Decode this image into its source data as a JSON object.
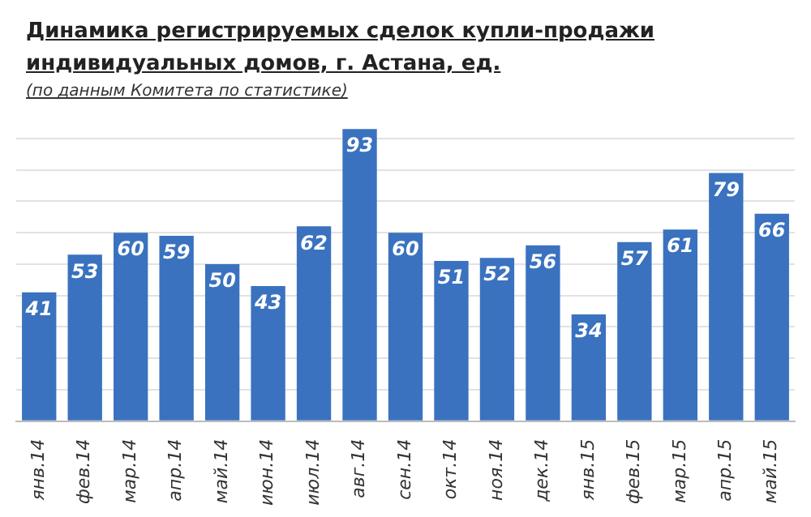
{
  "chart_data": {
    "type": "bar",
    "title": "Динамика регистрируемых сделок купли-продажи индивидуальных домов, г. Астана, ед.",
    "subtitle": "(по данным Комитета по статистике)",
    "categories": [
      "янв.14",
      "фев.14",
      "мар.14",
      "апр.14",
      "май.14",
      "июн.14",
      "июл.14",
      "авг.14",
      "сен.14",
      "окт.14",
      "ноя.14",
      "дек.14",
      "янв.15",
      "фев.15",
      "мар.15",
      "апр.15",
      "май.15"
    ],
    "values": [
      41,
      53,
      60,
      59,
      50,
      43,
      62,
      93,
      60,
      51,
      52,
      56,
      34,
      57,
      61,
      79,
      66
    ],
    "color": "#3a72bf",
    "yticks": [
      {
        "value": 0,
        "label": null
      },
      {
        "value": 10,
        "label": null
      },
      {
        "value": 20,
        "label": null
      },
      {
        "value": 30,
        "label": null
      },
      {
        "value": 40,
        "label": null
      },
      {
        "value": 50,
        "label": null
      },
      {
        "value": 60,
        "label": null
      },
      {
        "value": 70,
        "label": null
      },
      {
        "value": 80,
        "label": null
      },
      {
        "value": 90,
        "label": null
      }
    ],
    "grid": "y",
    "tick_labels": "x",
    "data_labels": true,
    "legend": false
  }
}
